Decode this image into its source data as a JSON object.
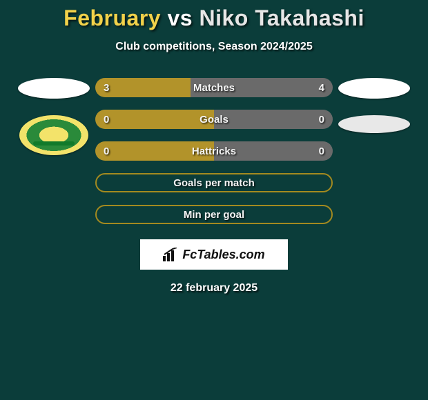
{
  "colors": {
    "page_bg": "#0b3d3a",
    "accent_yellow": "#a48a1f",
    "fill_yellow": "#b2932a",
    "fill_grey": "#6a6a6a",
    "title_p1": "#f2d24a",
    "title_vs": "#ffffff",
    "title_p2": "#e6e6e6",
    "text_white": "#ffffff",
    "brand_bg": "#ffffff",
    "brand_text": "#111111"
  },
  "title": {
    "player1": "February",
    "vs": "vs",
    "player2": "Niko Takahashi"
  },
  "subtitle": "Club competitions, Season 2024/2025",
  "bars": [
    {
      "label": "Matches",
      "left_val": "3",
      "right_val": "4",
      "left_pct": 40,
      "right_pct": 60,
      "left_color": "#b2932a",
      "right_color": "#6a6a6a",
      "style": "split"
    },
    {
      "label": "Goals",
      "left_val": "0",
      "right_val": "0",
      "left_pct": 50,
      "right_pct": 50,
      "left_color": "#b2932a",
      "right_color": "#6a6a6a",
      "style": "split"
    },
    {
      "label": "Hattricks",
      "left_val": "0",
      "right_val": "0",
      "left_pct": 50,
      "right_pct": 50,
      "left_color": "#b2932a",
      "right_color": "#6a6a6a",
      "style": "split"
    },
    {
      "label": "Goals per match",
      "style": "outline"
    },
    {
      "label": "Min per goal",
      "style": "outline"
    }
  ],
  "brand": "FcTables.com",
  "date_line": "22 february 2025"
}
